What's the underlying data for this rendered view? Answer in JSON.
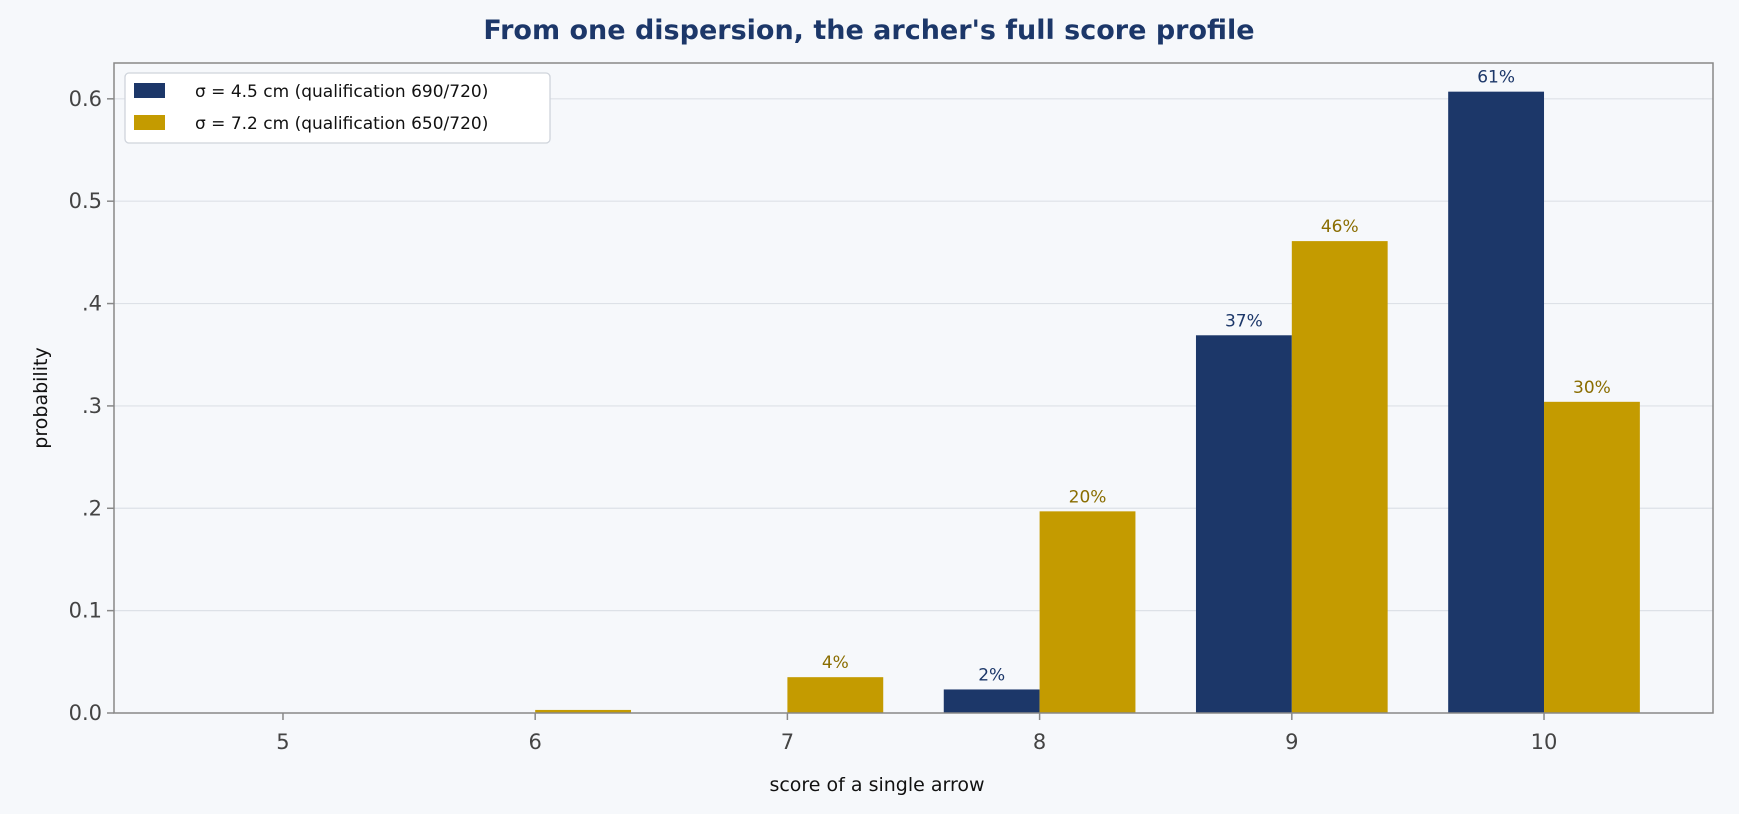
{
  "chart_data": {
    "type": "bar",
    "title": "From one dispersion, the archer's full score profile",
    "xlabel": "score of a single arrow",
    "ylabel": "probability",
    "categories": [
      "5",
      "6",
      "7",
      "8",
      "9",
      "10"
    ],
    "ylim": [
      0,
      0.635
    ],
    "yticks": [
      {
        "value": 0.0,
        "label": "0.0"
      },
      {
        "value": 0.1,
        "label": "0.1"
      },
      {
        "value": 0.2,
        "label": ".2"
      },
      {
        "value": 0.3,
        "label": ".3"
      },
      {
        "value": 0.4,
        "label": ".4"
      },
      {
        "value": 0.5,
        "label": "0.5"
      },
      {
        "value": 0.6,
        "label": "0.6"
      }
    ],
    "grid": "horizontal",
    "legend_position": "top-left",
    "series": [
      {
        "name": "σ = 4.5 cm  (qualification 690/720)",
        "color": "#1c3769",
        "label_color": "#1c3769",
        "values": [
          0.0,
          0.0,
          0.0,
          0.023,
          0.369,
          0.607
        ],
        "labels": [
          "",
          "",
          "",
          "2%",
          "37%",
          "61%"
        ]
      },
      {
        "name": "σ = 7.2 cm  (qualification 650/720)",
        "color": "#c49b00",
        "label_color": "#8a6d00",
        "values": [
          0.0,
          0.003,
          0.035,
          0.197,
          0.461,
          0.304
        ],
        "labels": [
          "",
          "",
          "4%",
          "20%",
          "46%",
          "30%"
        ]
      }
    ]
  },
  "colors": {
    "background": "#f6f8fb",
    "title": "#1c3769",
    "axis": "#888888",
    "grid": "#dde1e7",
    "tick_text": "#444444"
  }
}
